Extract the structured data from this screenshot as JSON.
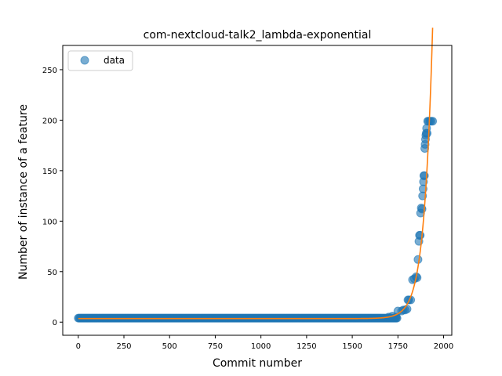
{
  "chart_data": {
    "type": "scatter",
    "title": "com-nextcloud-talk2_lambda-exponential",
    "xlabel": "Commit number",
    "ylabel": "Number of instance of a feature",
    "xlim": [
      -85,
      2045
    ],
    "ylim": [
      -13,
      274
    ],
    "x_ticks": [
      0,
      250,
      500,
      750,
      1000,
      1250,
      1500,
      1750,
      2000
    ],
    "y_ticks": [
      0,
      50,
      100,
      150,
      200,
      250
    ],
    "legend": {
      "placement": "top-left",
      "entries": [
        "data"
      ]
    },
    "grid": false,
    "colors": {
      "data": "#1f77b4",
      "fit": "#ff7f0e"
    },
    "series": [
      {
        "name": "data",
        "kind": "scatter",
        "baseline": {
          "x_start": 0,
          "x_end": 1745,
          "y": 4
        },
        "points": [
          [
            1700,
            5
          ],
          [
            1720,
            6
          ],
          [
            1740,
            5
          ],
          [
            1750,
            11
          ],
          [
            1770,
            11
          ],
          [
            1780,
            12
          ],
          [
            1790,
            12
          ],
          [
            1800,
            13
          ],
          [
            1805,
            22
          ],
          [
            1810,
            22
          ],
          [
            1820,
            22
          ],
          [
            1830,
            42
          ],
          [
            1840,
            43
          ],
          [
            1850,
            45
          ],
          [
            1855,
            44
          ],
          [
            1860,
            62
          ],
          [
            1865,
            80
          ],
          [
            1868,
            86
          ],
          [
            1872,
            86
          ],
          [
            1874,
            108
          ],
          [
            1878,
            113
          ],
          [
            1882,
            112
          ],
          [
            1885,
            125
          ],
          [
            1888,
            132
          ],
          [
            1890,
            139
          ],
          [
            1892,
            145
          ],
          [
            1895,
            145
          ],
          [
            1897,
            172
          ],
          [
            1899,
            176
          ],
          [
            1901,
            181
          ],
          [
            1903,
            185
          ],
          [
            1905,
            187
          ],
          [
            1907,
            192
          ],
          [
            1910,
            187
          ],
          [
            1913,
            199
          ],
          [
            1918,
            199
          ],
          [
            1925,
            199
          ],
          [
            1932,
            199
          ],
          [
            1940,
            199
          ]
        ]
      },
      {
        "name": "",
        "kind": "line",
        "model": {
          "a": 3.53,
          "b": 0.044,
          "x0": 1800,
          "c": 14.0
        },
        "x_range": [
          0,
          1940
        ]
      }
    ]
  }
}
